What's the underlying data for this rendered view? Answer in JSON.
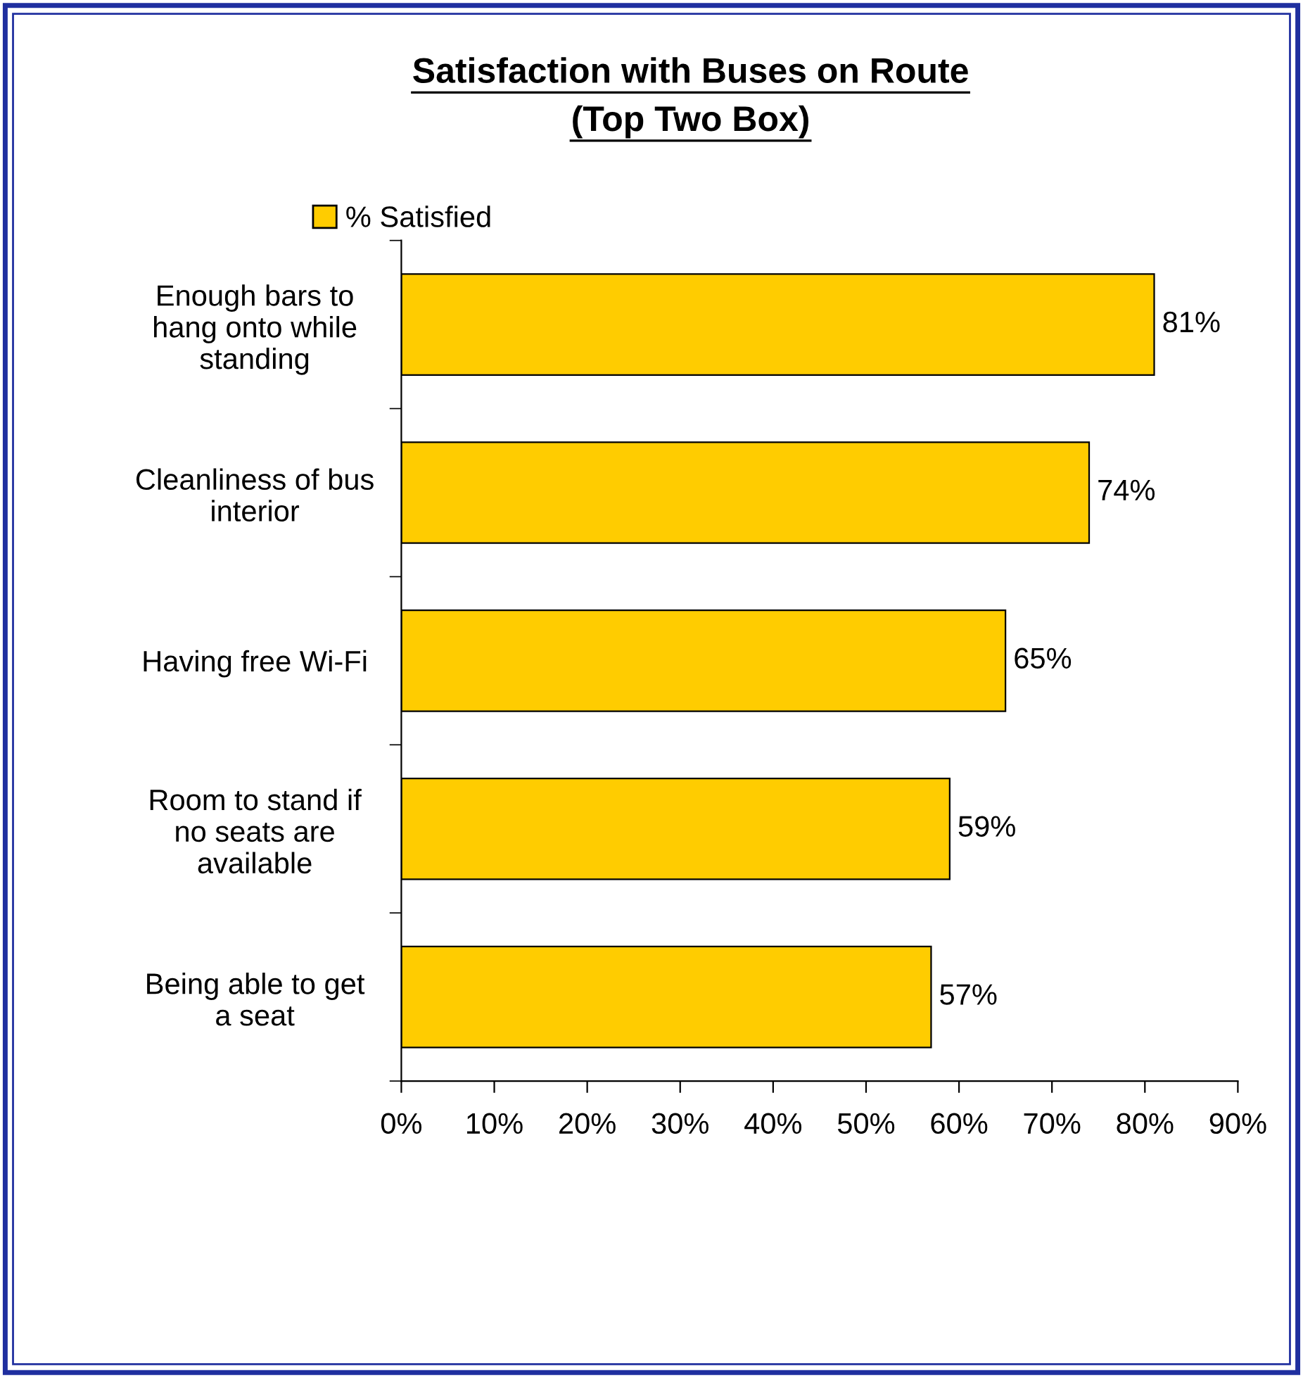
{
  "chart_data": {
    "type": "bar",
    "orientation": "horizontal",
    "title": "Satisfaction with Buses on Route",
    "subtitle": "(Top Two Box)",
    "categories": [
      "Enough bars to\nhang onto while\nstanding",
      "Cleanliness of bus\ninterior",
      "Having free Wi-Fi",
      "Room to stand if\nno seats are\navailable",
      "Being able to get\na seat"
    ],
    "series": [
      {
        "name": "% Satisfied",
        "color": "#ffcc00",
        "values": [
          81,
          74,
          65,
          59,
          57
        ],
        "value_labels": [
          "81%",
          "74%",
          "65%",
          "59%",
          "57%"
        ]
      }
    ],
    "xlim": [
      0,
      90
    ],
    "xticks": [
      {
        "value": 0,
        "label": "0%"
      },
      {
        "value": 10,
        "label": "10%"
      },
      {
        "value": 20,
        "label": "20%"
      },
      {
        "value": 30,
        "label": "30%"
      },
      {
        "value": 40,
        "label": "40%"
      },
      {
        "value": 50,
        "label": "50%"
      },
      {
        "value": 60,
        "label": "60%"
      },
      {
        "value": 70,
        "label": "70%"
      },
      {
        "value": 80,
        "label": "80%"
      },
      {
        "value": 90,
        "label": "90%"
      }
    ],
    "grid": false,
    "legend": "top left"
  }
}
